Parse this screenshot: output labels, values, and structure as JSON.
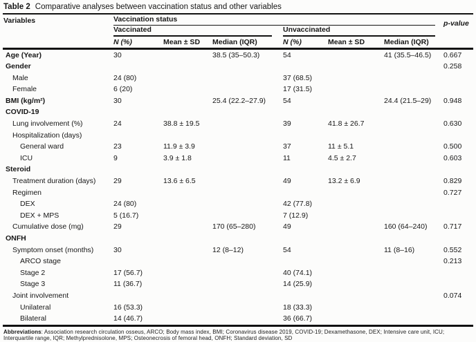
{
  "title": {
    "label": "Table 2",
    "text": "Comparative analyses between vaccination status and other variables"
  },
  "header": {
    "variables": "Variables",
    "vaccination_status": "Vaccination status",
    "vaccinated": "Vaccinated",
    "unvaccinated": "Unvaccinated",
    "col_n": "N (%)",
    "col_mean": "Mean ± SD",
    "col_median": "Median (IQR)",
    "p_value": "p-value"
  },
  "table": {
    "rows": [
      {
        "label": "Age (Year)",
        "bold": true,
        "indent": 0,
        "vn": "30",
        "vmean": "",
        "vmedian": "38.5 (35–50.3)",
        "un": "54",
        "umean": "",
        "umedian": "41 (35.5–46.5)",
        "p": "0.667"
      },
      {
        "label": "Gender",
        "bold": true,
        "indent": 0,
        "vn": "",
        "vmean": "",
        "vmedian": "",
        "un": "",
        "umean": "",
        "umedian": "",
        "p": "0.258"
      },
      {
        "label": "Male",
        "bold": false,
        "indent": 1,
        "vn": "24 (80)",
        "vmean": "",
        "vmedian": "",
        "un": "37 (68.5)",
        "umean": "",
        "umedian": "",
        "p": ""
      },
      {
        "label": "Female",
        "bold": false,
        "indent": 1,
        "vn": "6 (20)",
        "vmean": "",
        "vmedian": "",
        "un": "17 (31.5)",
        "umean": "",
        "umedian": "",
        "p": ""
      },
      {
        "label": "BMI (kg/m²)",
        "bold": true,
        "indent": 0,
        "vn": "30",
        "vmean": "",
        "vmedian": "25.4 (22.2–27.9)",
        "un": "54",
        "umean": "",
        "umedian": "24.4 (21.5–29)",
        "p": "0.948"
      },
      {
        "label": "COVID-19",
        "bold": true,
        "indent": 0,
        "vn": "",
        "vmean": "",
        "vmedian": "",
        "un": "",
        "umean": "",
        "umedian": "",
        "p": ""
      },
      {
        "label": "Lung involvement (%)",
        "bold": false,
        "indent": 1,
        "vn": "24",
        "vmean": "38.8 ± 19.5",
        "vmedian": "",
        "un": "39",
        "umean": "41.8 ± 26.7",
        "umedian": "",
        "p": "0.630"
      },
      {
        "label": "Hospitalization (days)",
        "bold": false,
        "indent": 1,
        "vn": "",
        "vmean": "",
        "vmedian": "",
        "un": "",
        "umean": "",
        "umedian": "",
        "p": ""
      },
      {
        "label": "General ward",
        "bold": false,
        "indent": 2,
        "vn": "23",
        "vmean": "11.9 ± 3.9",
        "vmedian": "",
        "un": "37",
        "umean": "11 ± 5.1",
        "umedian": "",
        "p": "0.500"
      },
      {
        "label": "ICU",
        "bold": false,
        "indent": 2,
        "vn": "9",
        "vmean": "3.9 ± 1.8",
        "vmedian": "",
        "un": "11",
        "umean": "4.5 ± 2.7",
        "umedian": "",
        "p": "0.603"
      },
      {
        "label": "Steroid",
        "bold": true,
        "indent": 0,
        "vn": "",
        "vmean": "",
        "vmedian": "",
        "un": "",
        "umean": "",
        "umedian": "",
        "p": ""
      },
      {
        "label": "Treatment duration (days)",
        "bold": false,
        "indent": 1,
        "vn": "29",
        "vmean": "13.6 ± 6.5",
        "vmedian": "",
        "un": "49",
        "umean": "13.2 ± 6.9",
        "umedian": "",
        "p": "0.829"
      },
      {
        "label": "Regimen",
        "bold": false,
        "indent": 1,
        "vn": "",
        "vmean": "",
        "vmedian": "",
        "un": "",
        "umean": "",
        "umedian": "",
        "p": "0.727"
      },
      {
        "label": "DEX",
        "bold": false,
        "indent": 2,
        "vn": "24 (80)",
        "vmean": "",
        "vmedian": "",
        "un": "42 (77.8)",
        "umean": "",
        "umedian": "",
        "p": ""
      },
      {
        "label": "DEX + MPS",
        "bold": false,
        "indent": 2,
        "vn": "5 (16.7)",
        "vmean": "",
        "vmedian": "",
        "un": "7 (12.9)",
        "umean": "",
        "umedian": "",
        "p": ""
      },
      {
        "label": "Cumulative dose (mg)",
        "bold": false,
        "indent": 1,
        "vn": "29",
        "vmean": "",
        "vmedian": "170 (65–280)",
        "un": "49",
        "umean": "",
        "umedian": "160 (64–240)",
        "p": "0.717"
      },
      {
        "label": "ONFH",
        "bold": true,
        "indent": 0,
        "vn": "",
        "vmean": "",
        "vmedian": "",
        "un": "",
        "umean": "",
        "umedian": "",
        "p": ""
      },
      {
        "label": "Symptom onset (months)",
        "bold": false,
        "indent": 1,
        "vn": "30",
        "vmean": "",
        "vmedian": "12 (8–12)",
        "un": "54",
        "umean": "",
        "umedian": "11 (8–16)",
        "p": "0.552"
      },
      {
        "label": "ARCO stage",
        "bold": false,
        "indent": 2,
        "vn": "",
        "vmean": "",
        "vmedian": "",
        "un": "",
        "umean": "",
        "umedian": "",
        "p": "0.213"
      },
      {
        "label": "Stage 2",
        "bold": false,
        "indent": 2,
        "vn": "17 (56.7)",
        "vmean": "",
        "vmedian": "",
        "un": "40 (74.1)",
        "umean": "",
        "umedian": "",
        "p": ""
      },
      {
        "label": "Stage 3",
        "bold": false,
        "indent": 2,
        "vn": "11 (36.7)",
        "vmean": "",
        "vmedian": "",
        "un": "14 (25.9)",
        "umean": "",
        "umedian": "",
        "p": ""
      },
      {
        "label": "Joint involvement",
        "bold": false,
        "indent": 1,
        "vn": "",
        "vmean": "",
        "vmedian": "",
        "un": "",
        "umean": "",
        "umedian": "",
        "p": "0.074"
      },
      {
        "label": "Unilateral",
        "bold": false,
        "indent": 2,
        "vn": "16 (53.3)",
        "vmean": "",
        "vmedian": "",
        "un": "18 (33.3)",
        "umean": "",
        "umedian": "",
        "p": ""
      },
      {
        "label": "Bilateral",
        "bold": false,
        "indent": 2,
        "vn": "14 (46.7)",
        "vmean": "",
        "vmedian": "",
        "un": "36 (66.7)",
        "umean": "",
        "umedian": "",
        "p": ""
      }
    ]
  },
  "footer": {
    "label": "Abbreviations",
    "text": ": Association research circulation osseus, ARCO; Body mass index, BMI; Coronavirus disease 2019, COVID-19; Dexamethasone, DEX; Intensive care unit, ICU; Interquartile range, IQR; Methylprednisolone, MPS; Osteonecrosis of femoral head, ONFH; Standard deviation, SD"
  }
}
